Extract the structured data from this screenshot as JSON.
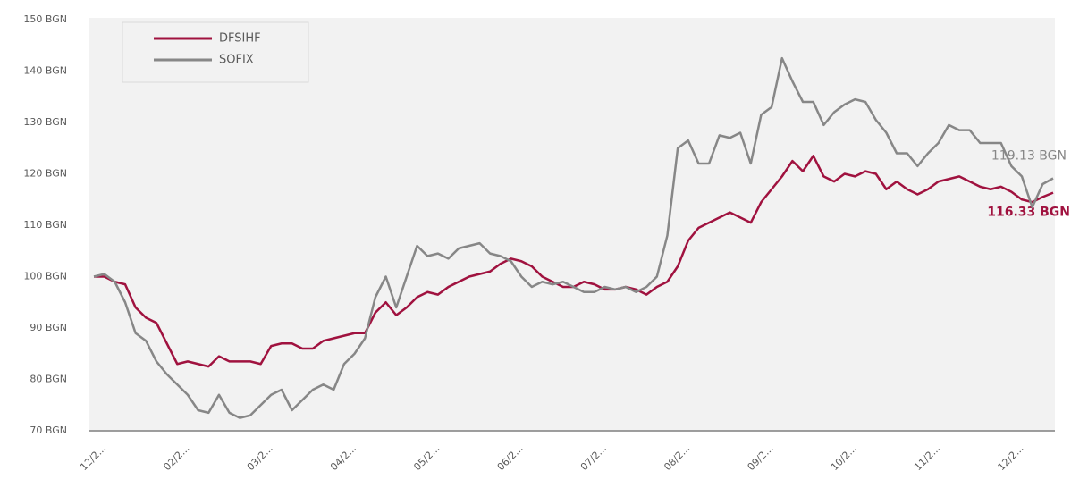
{
  "chart_data": {
    "type": "line",
    "categories": [
      "12/2...",
      null,
      null,
      null,
      null,
      null,
      null,
      null,
      "02/2...",
      null,
      null,
      null,
      null,
      null,
      null,
      null,
      "03/2...",
      null,
      null,
      null,
      null,
      null,
      null,
      null,
      "04/2...",
      null,
      null,
      null,
      null,
      null,
      null,
      null,
      "05/2...",
      null,
      null,
      null,
      null,
      null,
      null,
      null,
      "06/2...",
      null,
      null,
      null,
      null,
      null,
      null,
      null,
      "07/2...",
      null,
      null,
      null,
      null,
      null,
      null,
      null,
      "08/2...",
      null,
      null,
      null,
      null,
      null,
      null,
      null,
      "09/2...",
      null,
      null,
      null,
      null,
      null,
      null,
      null,
      "10/2...",
      null,
      null,
      null,
      null,
      null,
      null,
      null,
      "11/2...",
      null,
      null,
      null,
      null,
      null,
      null,
      null,
      "12/2...",
      null,
      null,
      null,
      null
    ],
    "series": [
      {
        "name": "DFSIHF",
        "color": "#a0123f",
        "values": [
          100,
          100,
          99,
          98.5,
          94,
          92,
          91,
          87,
          83,
          83.5,
          83,
          82.5,
          84.5,
          83.5,
          83.5,
          83.5,
          83,
          86.5,
          87,
          87,
          86,
          86,
          87.5,
          88,
          88.5,
          89,
          89,
          93,
          95,
          92.5,
          94,
          96,
          97,
          96.5,
          98,
          99,
          100,
          100.5,
          101,
          102.5,
          103.5,
          103,
          102,
          100,
          99,
          98,
          98,
          99,
          98.5,
          97.5,
          97.5,
          98,
          97.5,
          96.5,
          98,
          99,
          102,
          107,
          109.5,
          110.5,
          111.5,
          112.5,
          111.5,
          110.5,
          114.5,
          117,
          119.5,
          122.5,
          120.5,
          123.5,
          119.5,
          118.5,
          120,
          119.5,
          120.5,
          120,
          117,
          118.5,
          117,
          116,
          117,
          118.5,
          119,
          119.5,
          118.5,
          117.5,
          117,
          117.5,
          116.5,
          115,
          114.5,
          115.5,
          116.33
        ],
        "value_labels": [
          null,
          null,
          null,
          null,
          null,
          null,
          null,
          null,
          null,
          null,
          null,
          null,
          null,
          null,
          null,
          null,
          null,
          null,
          null,
          null,
          null,
          null,
          null,
          null,
          null,
          null,
          null,
          null,
          null,
          null,
          null,
          null,
          null,
          null,
          null,
          null,
          null,
          null,
          null,
          null,
          null,
          null,
          null,
          null,
          null,
          null,
          null,
          null,
          null,
          null,
          null,
          null,
          null,
          null,
          null,
          null,
          null,
          null,
          null,
          null,
          null,
          null,
          null,
          null,
          null,
          null,
          null,
          null,
          null,
          null,
          null,
          null,
          null,
          null,
          null,
          null,
          null,
          null,
          null,
          null,
          null,
          null,
          null,
          null,
          null,
          null,
          null,
          null,
          null,
          null,
          null,
          null,
          "116.33 BGN"
        ]
      },
      {
        "name": "SOFIX",
        "color": "#878787",
        "values": [
          100,
          100.5,
          99,
          95,
          89,
          87.5,
          83.5,
          81,
          79,
          77,
          74,
          73.5,
          77,
          73.5,
          72.5,
          73,
          75,
          77,
          78,
          74,
          76,
          78,
          79,
          78,
          83,
          85,
          88,
          96,
          100,
          94,
          100,
          106,
          104,
          104.5,
          103.5,
          105.5,
          106,
          106.5,
          104.5,
          104,
          103,
          100,
          98,
          99,
          98.5,
          99,
          98,
          97,
          97,
          98,
          97.5,
          98,
          97,
          98,
          100,
          108,
          125,
          126.5,
          122,
          122,
          127.5,
          127,
          128,
          122,
          131.5,
          133,
          142.5,
          138,
          134,
          134,
          129.5,
          132,
          133.5,
          134.5,
          134,
          130.5,
          128,
          124,
          124,
          121.5,
          124,
          126,
          129.5,
          128.5,
          128.5,
          126,
          126,
          126,
          121.5,
          119.5,
          113.5,
          118,
          119.13
        ],
        "value_labels": [
          null,
          null,
          null,
          null,
          null,
          null,
          null,
          null,
          null,
          null,
          null,
          null,
          null,
          null,
          null,
          null,
          null,
          null,
          null,
          null,
          null,
          null,
          null,
          null,
          null,
          null,
          null,
          null,
          null,
          null,
          null,
          null,
          null,
          null,
          null,
          null,
          null,
          null,
          null,
          null,
          null,
          null,
          null,
          null,
          null,
          null,
          null,
          null,
          null,
          null,
          null,
          null,
          null,
          null,
          null,
          null,
          null,
          null,
          null,
          null,
          null,
          null,
          null,
          null,
          null,
          null,
          null,
          null,
          null,
          null,
          null,
          null,
          null,
          null,
          null,
          null,
          null,
          null,
          null,
          null,
          null,
          null,
          null,
          null,
          null,
          null,
          null,
          null,
          null,
          null,
          null,
          null,
          "119.13 BGN"
        ]
      }
    ],
    "ylim": [
      70,
      150
    ],
    "yticks": [
      {
        "value": 70,
        "label": "70 BGN"
      },
      {
        "value": 80,
        "label": "80 BGN"
      },
      {
        "value": 90,
        "label": "90 BGN"
      },
      {
        "value": 100,
        "label": "100 BGN"
      },
      {
        "value": 110,
        "label": "110 BGN"
      },
      {
        "value": 120,
        "label": "120 BGN"
      },
      {
        "value": 130,
        "label": "130 BGN"
      },
      {
        "value": 140,
        "label": "140 BGN"
      },
      {
        "value": 150,
        "label": "150 BGN"
      }
    ],
    "grid": false,
    "legend": "upper left"
  }
}
